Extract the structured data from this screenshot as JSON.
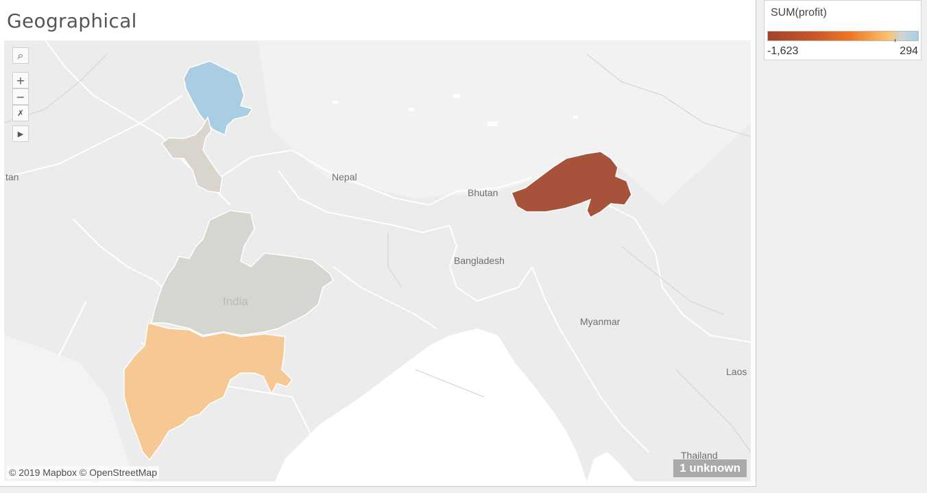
{
  "sheet": {
    "title": "Geographical"
  },
  "legend": {
    "title": "SUM(profit)",
    "min_label": "-1,623",
    "max_label": "294",
    "min_value": -1623,
    "max_value": 294,
    "ramp_colors": [
      "#a1432a",
      "#c9552a",
      "#ec7826",
      "#fdbf6f",
      "#c9d6df",
      "#a9cde2"
    ]
  },
  "map": {
    "place_labels": {
      "tan": "tan",
      "nepal": "Nepal",
      "bhutan": "Bhutan",
      "bangladesh": "Bangladesh",
      "india": "India",
      "myanmar": "Myanmar",
      "laos": "Laos",
      "thailand": "Thailand"
    },
    "regions": [
      {
        "name": "highlighted-region-north",
        "color": "#a9cde2"
      },
      {
        "name": "highlighted-region-northwest",
        "color": "#d9d4cc"
      },
      {
        "name": "highlighted-region-central",
        "color": "#d6d6d0"
      },
      {
        "name": "highlighted-region-west",
        "color": "#f5c894"
      },
      {
        "name": "highlighted-region-northeast",
        "color": "#a7523a"
      }
    ],
    "attribution": "© 2019 Mapbox © OpenStreetMap",
    "unknown_badge": "1 unknown"
  },
  "toolbar": {
    "search_glyph": "⌕",
    "zoom_in_glyph": "+",
    "zoom_out_glyph": "−",
    "pin_glyph": "✗",
    "expand_glyph": "▶"
  }
}
